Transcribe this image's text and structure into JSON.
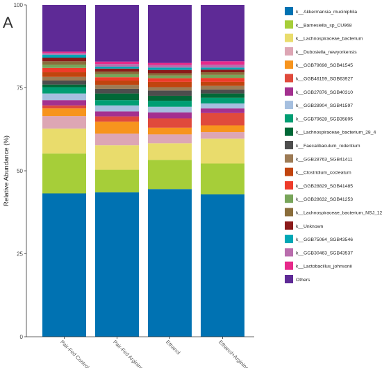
{
  "panel_label": "A",
  "chart_data": {
    "type": "bar",
    "stacked": true,
    "ylabel": "Relative Abundance (%)",
    "ylim": [
      0,
      100
    ],
    "yticks": [
      0,
      25,
      50,
      75,
      100
    ],
    "grid": false,
    "legend_position": "right",
    "categories": [
      "Pair-Fed Control",
      "Pair-Fed Arginine",
      "Ethanol",
      "Ethanol+Arginine"
    ],
    "series": [
      {
        "name": "k__Akkermansia_muciniphila",
        "color": "#0072B2",
        "values": [
          43.2,
          43.5,
          44.5,
          42.9
        ]
      },
      {
        "name": "k__Barnesiella_sp_CU968",
        "color": "#A6CE39",
        "values": [
          12.0,
          6.8,
          8.8,
          9.3
        ]
      },
      {
        "name": "k__Lachnospiraceae_bacterium",
        "color": "#E9DC6C",
        "values": [
          7.5,
          7.4,
          5.0,
          7.5
        ]
      },
      {
        "name": "k__Dubosiella_newyorkensis",
        "color": "#DDA6B4",
        "values": [
          3.8,
          3.5,
          2.7,
          2.0
        ]
      },
      {
        "name": "k__GGB79698_SGB41545",
        "color": "#F7941D",
        "values": [
          2.3,
          3.6,
          2.0,
          2.0
        ]
      },
      {
        "name": "k__GGB46159_SGB63927",
        "color": "#E04A3C",
        "values": [
          0.9,
          1.6,
          2.8,
          3.7
        ]
      },
      {
        "name": "k__GGB27876_SGB40310",
        "color": "#A3308F",
        "values": [
          1.6,
          1.5,
          1.8,
          1.4
        ]
      },
      {
        "name": "k__GGB28904_SGB41597",
        "color": "#A5BFDF",
        "values": [
          2.0,
          1.8,
          1.7,
          1.5
        ]
      },
      {
        "name": "k__GGB79628_SGB35895",
        "color": "#009E73",
        "values": [
          1.9,
          1.6,
          1.8,
          1.7
        ]
      },
      {
        "name": "k__Lachnospiraceae_bacterium_28_4",
        "color": "#006837",
        "values": [
          0.8,
          2.0,
          1.5,
          1.3
        ]
      },
      {
        "name": "k__Faecalibaculum_rodentium",
        "color": "#4D4D4D",
        "values": [
          1.2,
          1.4,
          1.6,
          1.2
        ]
      },
      {
        "name": "k__GGB28763_SGB41411",
        "color": "#9D7B55",
        "values": [
          1.1,
          1.2,
          1.0,
          1.1
        ]
      },
      {
        "name": "k__Clostridium_cocleatum",
        "color": "#C1440E",
        "values": [
          1.4,
          1.3,
          1.6,
          1.2
        ]
      },
      {
        "name": "k__GGB28829_SGB41485",
        "color": "#EE3B2A",
        "values": [
          1.3,
          1.0,
          1.1,
          1.2
        ]
      },
      {
        "name": "k__GGB28632_SGB41253",
        "color": "#78A55A",
        "values": [
          1.0,
          0.9,
          0.8,
          0.9
        ]
      },
      {
        "name": "k__Lachnospiraceae_bacterium_NSJ_12",
        "color": "#8A6D3B",
        "values": [
          1.0,
          0.8,
          0.7,
          0.8
        ]
      },
      {
        "name": "k__Unknown",
        "color": "#8B1A1A",
        "values": [
          1.1,
          0.9,
          1.0,
          0.8
        ]
      },
      {
        "name": "k__GGB75064_SGB43546",
        "color": "#00A7B5",
        "values": [
          0.9,
          0.6,
          0.7,
          0.6
        ]
      },
      {
        "name": "k__GGB30463_SGB43537",
        "color": "#B96DAD",
        "values": [
          0.5,
          0.8,
          0.8,
          0.9
        ]
      },
      {
        "name": "k__Lactobacillus_johnsonii",
        "color": "#E7298A",
        "values": [
          0.4,
          0.7,
          0.6,
          1.0
        ]
      },
      {
        "name": "Others",
        "color": "#5E2A96",
        "values": [
          14.1,
          17.1,
          17.5,
          17.0
        ]
      }
    ]
  }
}
